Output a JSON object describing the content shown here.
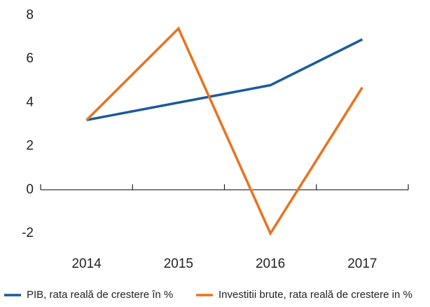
{
  "chart_data": {
    "type": "line",
    "categories": [
      "2014",
      "2015",
      "2016",
      "2017"
    ],
    "series": [
      {
        "name": "PIB, rata reală de crestere în %",
        "color": "#1c5a9c",
        "values": [
          3.2,
          4.0,
          4.8,
          6.9
        ]
      },
      {
        "name": "Investitii brute, rata reală de crestere in %",
        "color": "#e8731e",
        "values": [
          3.2,
          7.4,
          -2.0,
          4.7
        ]
      }
    ],
    "ylim": [
      -2,
      8
    ],
    "yticks": [
      -2,
      0,
      2,
      4,
      6,
      8
    ],
    "grid": false
  }
}
